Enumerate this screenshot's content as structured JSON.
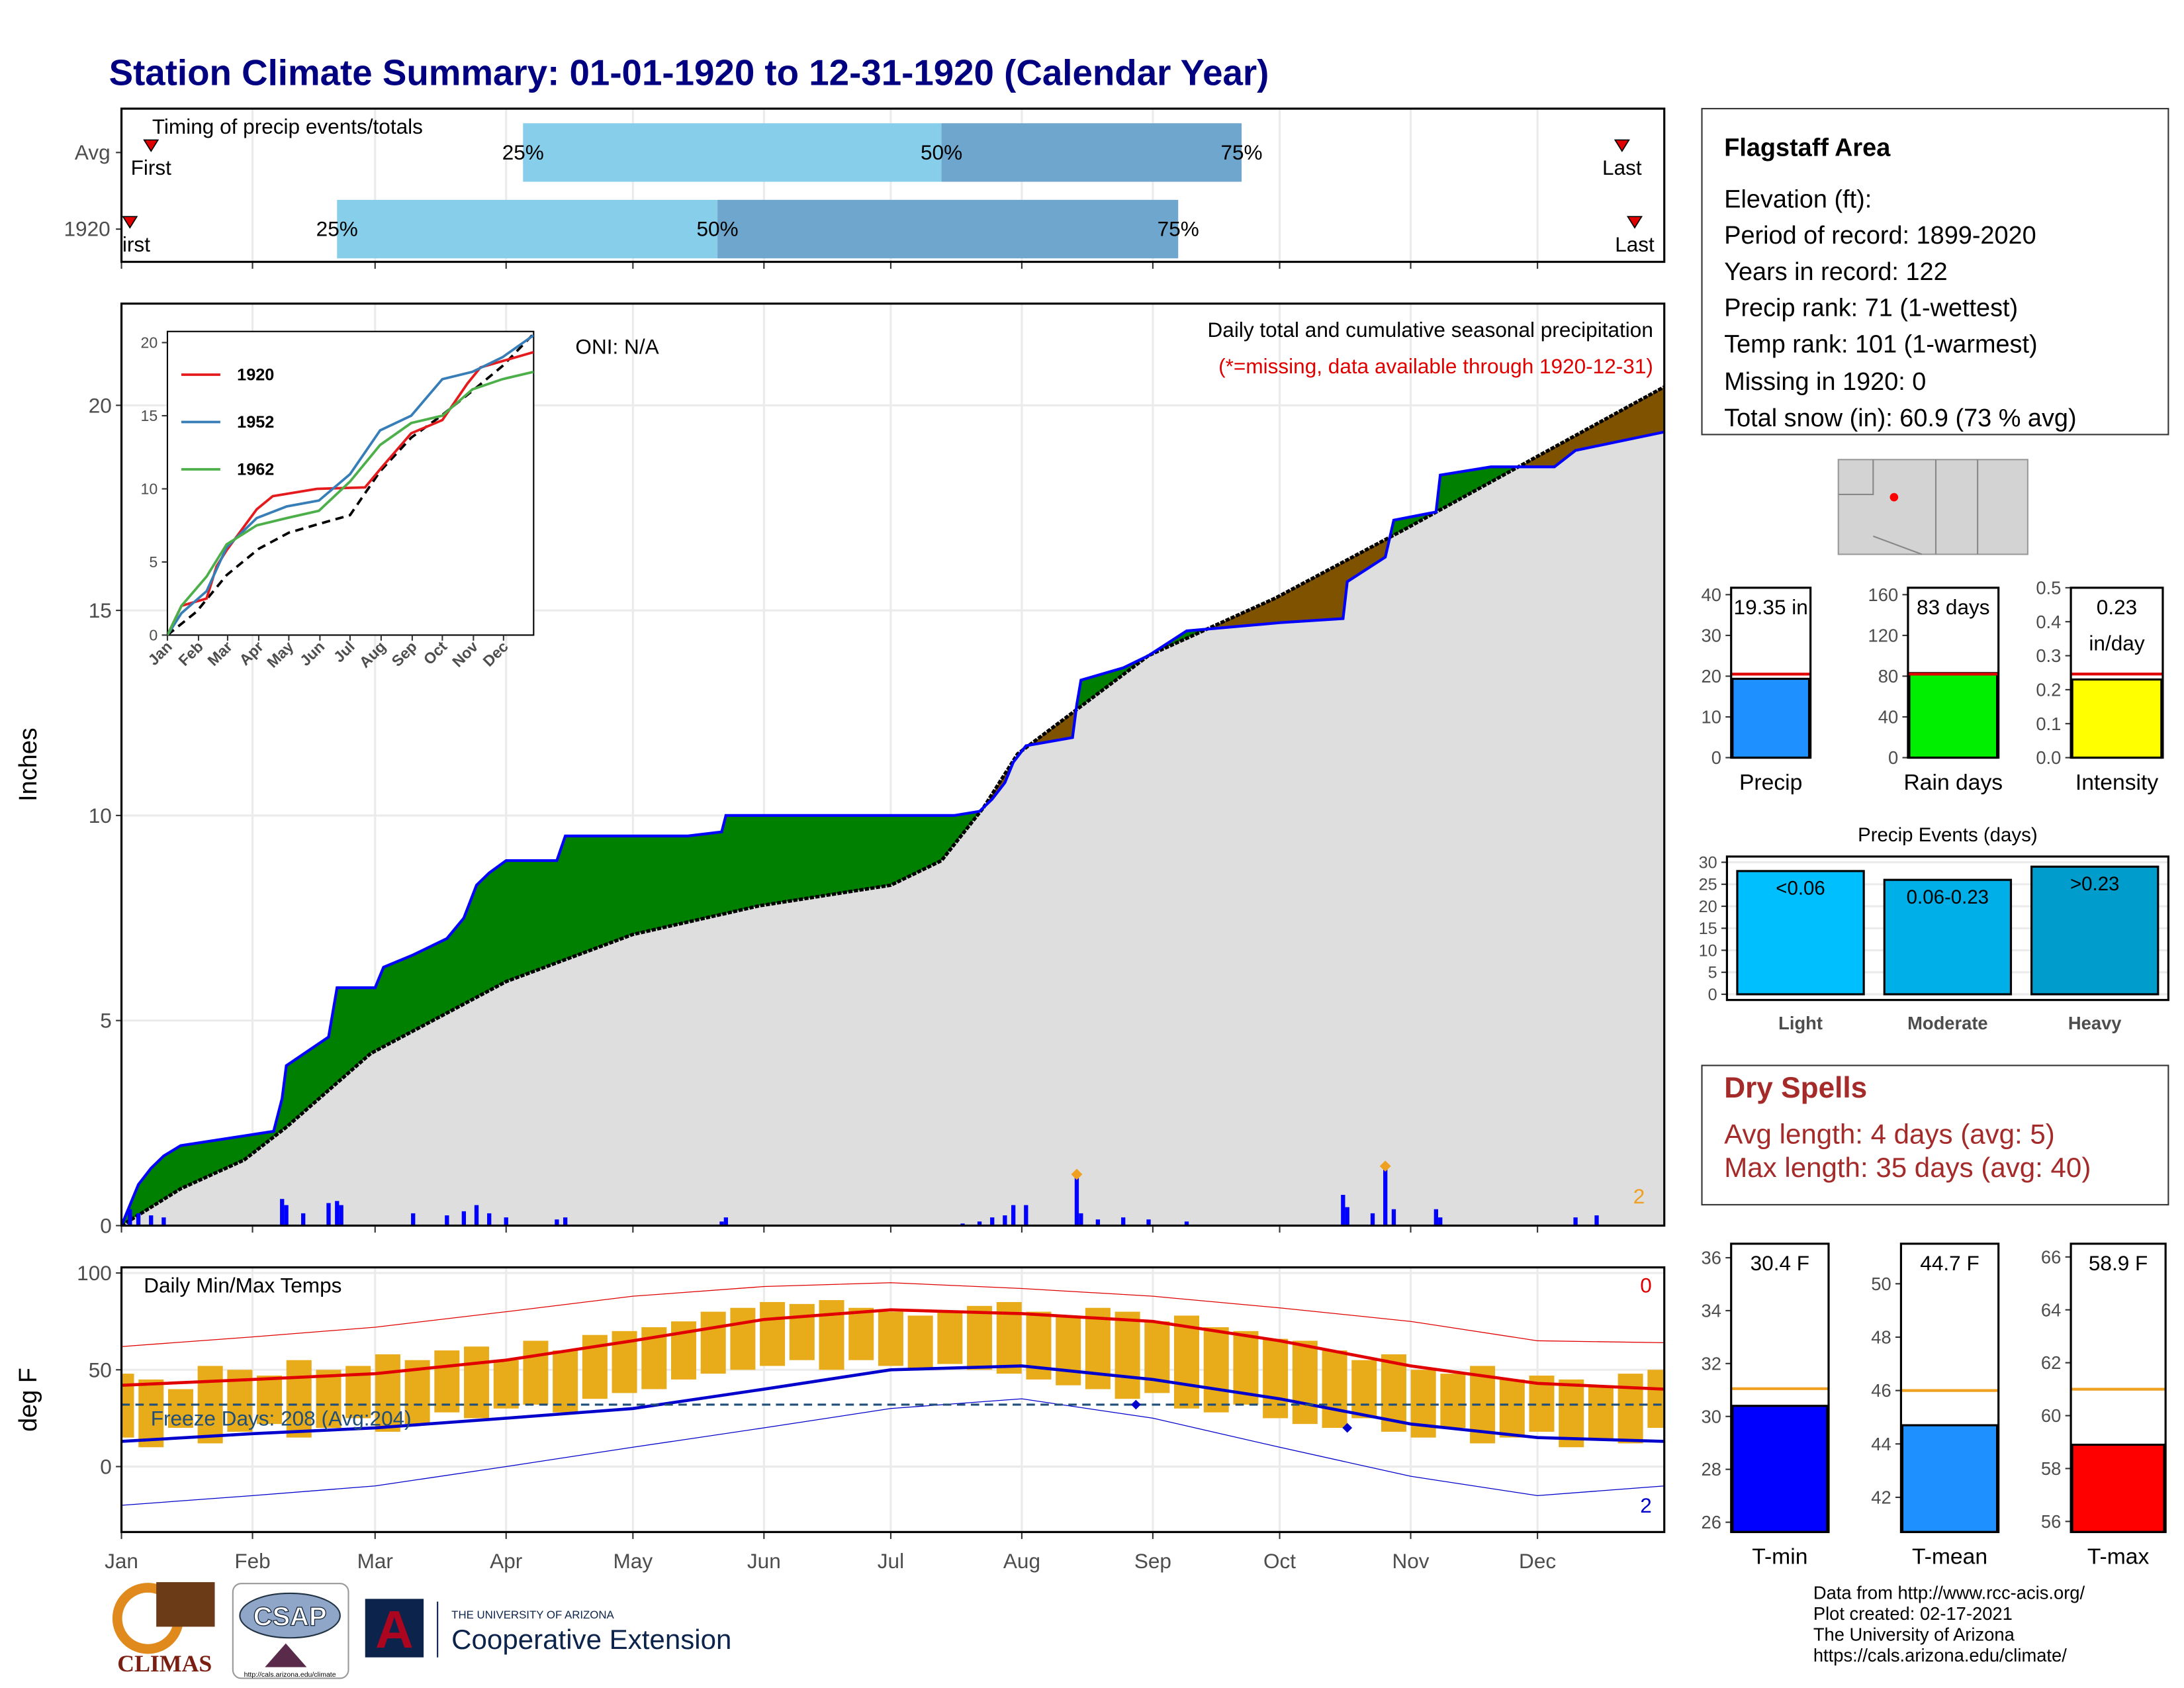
{
  "title": "Station Climate Summary: 01-01-1920 to 12-31-1920 (Calendar Year)",
  "chart_data": [
    {
      "type": "timeline",
      "subtitle": "Timing of precip events/totals",
      "xlim": [
        1,
        366
      ],
      "xticks": [
        1,
        32,
        61,
        92,
        122,
        153,
        183,
        214,
        245,
        275,
        306,
        336
      ],
      "labels": [
        "First",
        "25%",
        "50%",
        "75%",
        "Last"
      ],
      "colors": [
        "#87ceeb",
        "#6fa6cd",
        "#e00000"
      ],
      "rows": [
        {
          "name": "Avg",
          "values": [
            8,
            96,
            195,
            266,
            356
          ]
        },
        {
          "name": "1920",
          "values": [
            3,
            52,
            142,
            251,
            359
          ]
        }
      ]
    },
    {
      "type": "cumulative",
      "ylabel": "Inches",
      "xlim": [
        1,
        366
      ],
      "ylim": [
        0,
        22.48
      ],
      "xticks": [
        1,
        32,
        61,
        92,
        122,
        153,
        183,
        214,
        245,
        275,
        306,
        336
      ],
      "yticks": [
        0,
        5,
        10,
        15,
        20
      ],
      "oni": "ONI: N/A",
      "caption": "Daily total and cumulative seasonal precipitation",
      "missing_note": "(*=missing, data available through 1920-12-31)",
      "surplus_color": "#008000",
      "deficit_color": "#7f5200",
      "normal_area_color": "#dedede",
      "observed": {
        "color": "#0000ff",
        "x": [
          1,
          3,
          5,
          8,
          11,
          15,
          37,
          39,
          40,
          50,
          52,
          61,
          63,
          70,
          78,
          82,
          85,
          88,
          92,
          104,
          106,
          135,
          143,
          144,
          198,
          204,
          207,
          210,
          212,
          215,
          226,
          227,
          228,
          238,
          244,
          253,
          275,
          290,
          291,
          300,
          302,
          312,
          313,
          325,
          340,
          345,
          366
        ],
        "values": [
          0,
          0.5,
          1.0,
          1.4,
          1.7,
          1.95,
          2.3,
          3.1,
          3.9,
          4.6,
          5.8,
          5.8,
          6.3,
          6.6,
          7.0,
          7.5,
          8.3,
          8.6,
          8.9,
          8.9,
          9.5,
          9.5,
          9.6,
          10.0,
          10.0,
          10.1,
          10.4,
          10.8,
          11.3,
          11.7,
          11.9,
          12.7,
          13.3,
          13.6,
          13.9,
          14.5,
          14.7,
          14.8,
          15.7,
          16.3,
          17.2,
          17.4,
          18.3,
          18.5,
          18.5,
          18.9,
          19.35
        ]
      },
      "normal": {
        "color": "#000000",
        "x": [
          1,
          15,
          30,
          40,
          60,
          92,
          122,
          152,
          183,
          195,
          205,
          213,
          244,
          274,
          305,
          335,
          366
        ],
        "values": [
          0,
          0.9,
          1.6,
          2.4,
          4.2,
          5.95,
          7.1,
          7.8,
          8.3,
          8.9,
          10.2,
          11.5,
          13.9,
          15.3,
          17.0,
          18.7,
          20.45
        ]
      },
      "daily": {
        "color": "#0000ff",
        "highlight_color": "#f0a020",
        "x": [
          3,
          5,
          8,
          11,
          39,
          40,
          44,
          50,
          52,
          53,
          70,
          78,
          82,
          85,
          88,
          92,
          104,
          106,
          143,
          144,
          200,
          204,
          207,
          210,
          212,
          215,
          227,
          228,
          232,
          238,
          244,
          253,
          290,
          291,
          297,
          300,
          302,
          312,
          313,
          345,
          350
        ],
        "values": [
          0.4,
          0.3,
          0.25,
          0.2,
          0.65,
          0.5,
          0.3,
          0.55,
          0.6,
          0.5,
          0.3,
          0.25,
          0.35,
          0.5,
          0.3,
          0.2,
          0.15,
          0.2,
          0.1,
          0.2,
          0.05,
          0.1,
          0.2,
          0.25,
          0.5,
          0.5,
          1.25,
          0.3,
          0.15,
          0.2,
          0.15,
          0.1,
          0.75,
          0.45,
          0.3,
          1.45,
          0.4,
          0.4,
          0.2,
          0.2,
          0.25
        ]
      },
      "highlight_count": 2
    },
    {
      "type": "line",
      "xlim": [
        1,
        366
      ],
      "ylim": [
        0,
        20.76
      ],
      "yticks": [
        0,
        5,
        10,
        15,
        20
      ],
      "xticks": [
        {
          "value": 1,
          "label": "Jan"
        },
        {
          "value": 32,
          "label": "Feb"
        },
        {
          "value": 61,
          "label": "Mar"
        },
        {
          "value": 92,
          "label": "Apr"
        },
        {
          "value": 122,
          "label": "May"
        },
        {
          "value": 153,
          "label": "Jun"
        },
        {
          "value": 183,
          "label": "Jul"
        },
        {
          "value": 214,
          "label": "Aug"
        },
        {
          "value": 245,
          "label": "Sep"
        },
        {
          "value": 275,
          "label": "Oct"
        },
        {
          "value": 306,
          "label": "Nov"
        },
        {
          "value": 336,
          "label": "Dec"
        }
      ],
      "series": [
        {
          "name": "1920",
          "color": "#e41a1c",
          "x": [
            1,
            15,
            40,
            50,
            60,
            90,
            106,
            150,
            198,
            215,
            244,
            275,
            300,
            313,
            366
          ],
          "values": [
            0,
            2,
            2.5,
            4.7,
            5.8,
            8.6,
            9.5,
            10,
            10.1,
            11.5,
            13.8,
            14.7,
            17.2,
            18.3,
            19.35
          ]
        },
        {
          "name": "1952",
          "color": "#377eb8",
          "x": [
            1,
            15,
            40,
            60,
            90,
            120,
            152,
            183,
            213,
            244,
            275,
            305,
            335,
            366
          ],
          "values": [
            0,
            1.5,
            3,
            6,
            8,
            8.8,
            9.2,
            11,
            14,
            15,
            17.5,
            18,
            19,
            20.5
          ]
        },
        {
          "name": "1962",
          "color": "#4daf4a",
          "x": [
            1,
            15,
            40,
            60,
            90,
            120,
            152,
            183,
            213,
            244,
            275,
            305,
            335,
            366
          ],
          "values": [
            0,
            2,
            4,
            6.2,
            7.5,
            8,
            8.5,
            10.5,
            13,
            14.5,
            15,
            16.8,
            17.5,
            18
          ]
        }
      ],
      "normal": {
        "color": "#000000",
        "x": [
          1,
          30,
          60,
          92,
          122,
          152,
          183,
          213,
          244,
          274,
          305,
          335,
          366
        ],
        "values": [
          0,
          1.6,
          4.1,
          5.9,
          7,
          7.6,
          8.2,
          11.2,
          13.5,
          15,
          16.7,
          18.4,
          20.6
        ]
      }
    },
    {
      "type": "temperature",
      "title": "Daily Min/Max Temps",
      "ylabel": "deg F",
      "xlim": [
        1,
        366
      ],
      "ylim": [
        -33.8,
        102.9
      ],
      "yticks": [
        0,
        50,
        100
      ],
      "xticks": [
        {
          "value": 1,
          "label": "Jan"
        },
        {
          "value": 32,
          "label": "Feb"
        },
        {
          "value": 61,
          "label": "Mar"
        },
        {
          "value": 92,
          "label": "Apr"
        },
        {
          "value": 122,
          "label": "May"
        },
        {
          "value": 153,
          "label": "Jun"
        },
        {
          "value": 183,
          "label": "Jul"
        },
        {
          "value": 214,
          "label": "Aug"
        },
        {
          "value": 245,
          "label": "Sep"
        },
        {
          "value": 275,
          "label": "Oct"
        },
        {
          "value": 306,
          "label": "Nov"
        },
        {
          "value": 336,
          "label": "Dec"
        }
      ],
      "freeze_line": 32,
      "freeze_label": "Freeze Days: 208 (Avg:204)",
      "freeze_color": "#1f4e79",
      "record_high_count": 0,
      "record_low_count": 2,
      "daily": {
        "color": "#e8ab1a",
        "x": [
          1,
          8,
          15,
          22,
          29,
          36,
          43,
          50,
          57,
          64,
          71,
          78,
          85,
          92,
          99,
          106,
          113,
          120,
          127,
          134,
          141,
          148,
          155,
          162,
          169,
          176,
          183,
          190,
          197,
          204,
          211,
          218,
          225,
          232,
          239,
          246,
          253,
          260,
          267,
          274,
          281,
          288,
          295,
          302,
          309,
          316,
          323,
          330,
          337,
          344,
          351,
          358,
          365
        ],
        "highs": [
          48,
          45,
          40,
          52,
          50,
          47,
          55,
          50,
          52,
          58,
          55,
          60,
          62,
          55,
          65,
          60,
          68,
          70,
          72,
          75,
          80,
          82,
          85,
          84,
          86,
          82,
          80,
          78,
          80,
          83,
          85,
          80,
          78,
          82,
          80,
          75,
          78,
          72,
          70,
          66,
          65,
          60,
          55,
          58,
          50,
          48,
          52,
          45,
          47,
          45,
          42,
          48,
          50
        ],
        "lows": [
          15,
          10,
          20,
          12,
          18,
          22,
          15,
          20,
          25,
          18,
          22,
          28,
          25,
          30,
          32,
          28,
          35,
          38,
          40,
          45,
          48,
          50,
          52,
          55,
          50,
          55,
          52,
          50,
          53,
          50,
          48,
          45,
          42,
          40,
          35,
          38,
          30,
          28,
          32,
          25,
          22,
          20,
          25,
          18,
          15,
          20,
          12,
          15,
          18,
          10,
          14,
          12,
          20
        ]
      },
      "normals": {
        "x": [
          1,
          32,
          61,
          92,
          122,
          153,
          183,
          214,
          245,
          275,
          306,
          336,
          366
        ],
        "avg_max": [
          42,
          45,
          48,
          55,
          65,
          76,
          81,
          79,
          75,
          65,
          52,
          43,
          40
        ],
        "avg_min": [
          13,
          17,
          20,
          25,
          30,
          40,
          50,
          52,
          45,
          35,
          22,
          15,
          13
        ],
        "record_max": [
          62,
          67,
          72,
          80,
          88,
          93,
          95,
          92,
          88,
          82,
          75,
          65,
          64
        ],
        "record_min": [
          -20,
          -15,
          -10,
          0,
          10,
          20,
          30,
          35,
          25,
          10,
          -5,
          -15,
          -10
        ]
      },
      "record_lows": {
        "x": [
          241,
          291
        ],
        "values": [
          32,
          20
        ]
      },
      "max_color": "#e00000",
      "min_color": "#0000cc"
    },
    {
      "type": "gauge",
      "xlabel": "Precip",
      "value": 19.35,
      "value_label": [
        "19.35 in"
      ],
      "normal": 20.5,
      "color": "#1e90ff",
      "normal_color": "#e00000",
      "ylim": [
        0,
        41.7
      ],
      "yticks": [
        0,
        10,
        20,
        30,
        40
      ]
    },
    {
      "type": "gauge",
      "xlabel": "Rain days",
      "value": 83,
      "value_label": [
        "83 days"
      ],
      "normal": 82,
      "color": "#00ee00",
      "normal_color": "#e00000",
      "ylim": [
        0,
        166.8
      ],
      "yticks": [
        0,
        40,
        80,
        120,
        160
      ]
    },
    {
      "type": "gauge",
      "xlabel": "Intensity",
      "value": 0.23,
      "value_label": [
        "0.23",
        "in/day"
      ],
      "normal": 0.246,
      "color": "#ffff00",
      "normal_color": "#e00000",
      "ylim": [
        0,
        0.5
      ],
      "yticks": [
        {
          "value": 0,
          "label": "0.0"
        },
        0.1,
        0.2,
        0.3,
        0.4,
        0.5
      ]
    },
    {
      "type": "events",
      "title": "Precip Events (days)",
      "ylim": [
        -1.3,
        31.3
      ],
      "yticks": [
        0,
        5,
        10,
        15,
        20,
        25,
        30
      ],
      "categories": [
        "Light",
        "Moderate",
        "Heavy"
      ],
      "values": [
        28,
        26,
        29
      ],
      "bin_labels": [
        "<0.06",
        "0.06-0.23",
        ">0.23"
      ],
      "colors": [
        "#00bfff",
        "#00aee8",
        "#009ccc"
      ]
    },
    {
      "type": "gauge",
      "xlabel": "T-min",
      "value": 30.4,
      "value_label": [
        "30.4 F"
      ],
      "normal": 31.05,
      "color": "#0000ff",
      "normal_color": "#f0a020",
      "ylim": [
        25.63,
        36.53
      ],
      "yticks": [
        26,
        28,
        30,
        32,
        34,
        36
      ]
    },
    {
      "type": "gauge",
      "xlabel": "T-mean",
      "value": 44.7,
      "value_label": [
        "44.7 F"
      ],
      "normal": 46,
      "color": "#1e90ff",
      "normal_color": "#f0a020",
      "ylim": [
        40.7,
        51.5
      ],
      "yticks": [
        42,
        44,
        46,
        48,
        50
      ]
    },
    {
      "type": "gauge",
      "xlabel": "T-max",
      "value": 58.9,
      "value_label": [
        "58.9 F"
      ],
      "normal": 61,
      "color": "#ff0000",
      "normal_color": "#f0a020",
      "ylim": [
        55.6,
        66.5
      ],
      "yticks": [
        56,
        58,
        60,
        62,
        64,
        66
      ]
    }
  ],
  "info": {
    "title": "Flagstaff Area",
    "lines": [
      "Elevation (ft):",
      "Period of record: 1899-2020",
      "Years in record: 122",
      "Precip rank: 71 (1-wettest)",
      "Temp rank: 101 (1-warmest)",
      "Missing in 1920: 0",
      "Total snow (in): 60.9 (73 % avg)"
    ]
  },
  "dry_spells": {
    "title": "Dry Spells",
    "lines": [
      "Avg length: 4 days (avg: 5)",
      "Max length: 35 days (avg: 40)"
    ]
  },
  "footer": [
    "Data from http://www.rcc-acis.org/",
    "Plot created: 02-17-2021",
    "The University of Arizona",
    "https://cals.arizona.edu/climate/"
  ],
  "logos": {
    "climas": "CLIMAS",
    "csap": "CSAP",
    "csap_url": "http://cals.arizona.edu/climate",
    "ua_mark": "A",
    "ua_name": "THE UNIVERSITY OF ARIZONA",
    "ua_unit": "Cooperative Extension"
  }
}
